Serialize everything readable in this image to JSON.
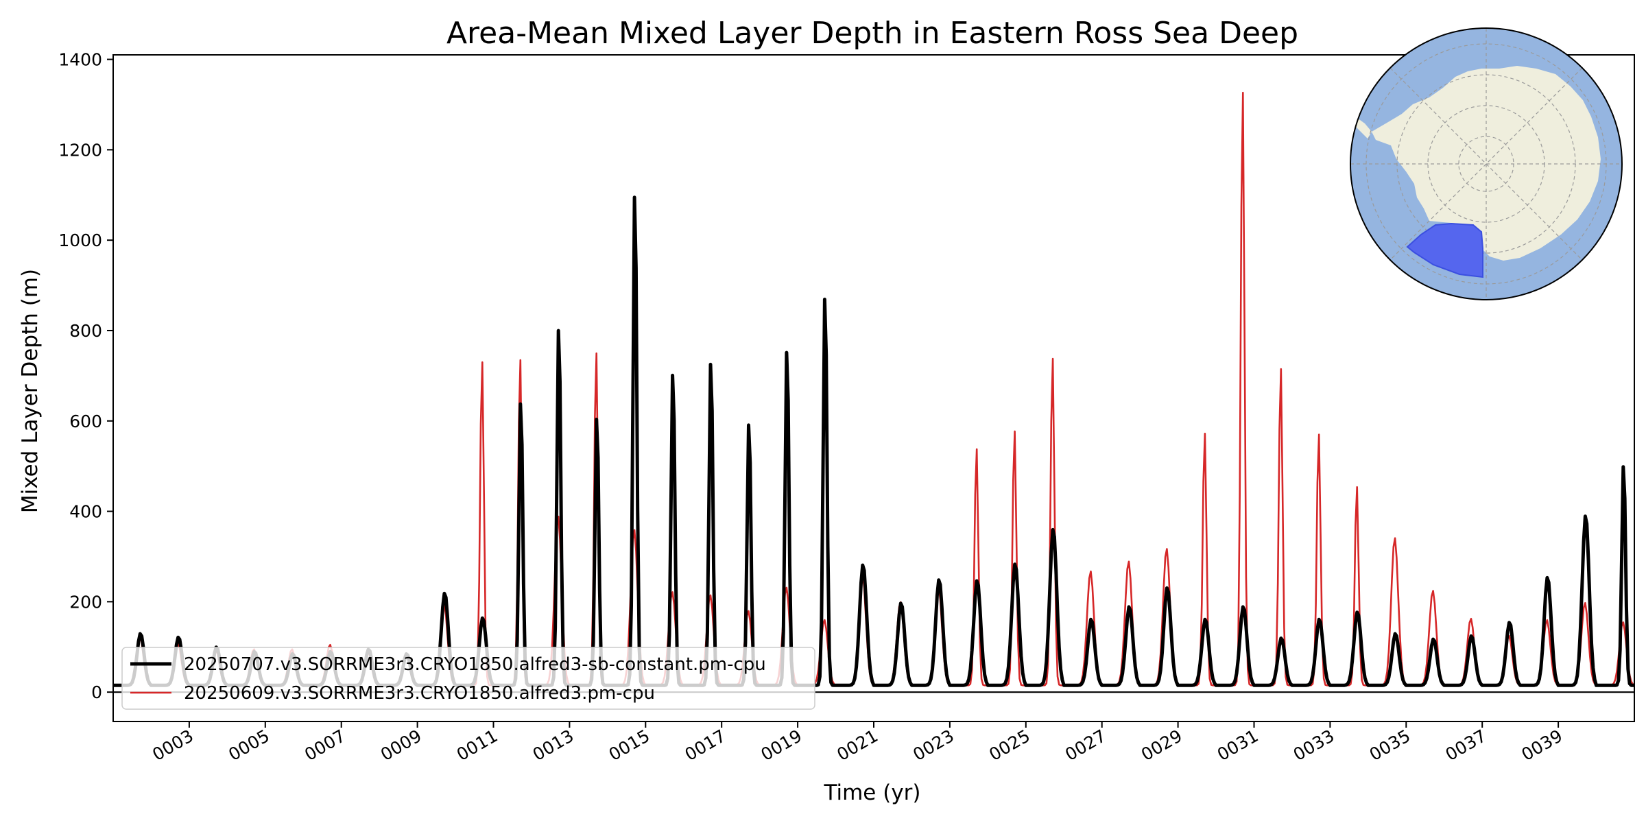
{
  "chart_data": {
    "type": "line",
    "title": "Area-Mean Mixed Layer Depth in Eastern Ross Sea Deep",
    "xlabel": "Time (yr)",
    "ylabel": "Mixed Layer Depth (m)",
    "xlim": [
      1,
      41
    ],
    "ylim": [
      -65,
      1410
    ],
    "x_ticks": [
      3,
      5,
      7,
      9,
      11,
      13,
      15,
      17,
      19,
      21,
      23,
      25,
      27,
      29,
      31,
      33,
      35,
      37,
      39
    ],
    "x_tick_labels": [
      "0003",
      "0005",
      "0007",
      "0009",
      "0011",
      "0013",
      "0015",
      "0017",
      "0019",
      "0021",
      "0023",
      "0025",
      "0027",
      "0029",
      "0031",
      "0033",
      "0035",
      "0037",
      "0039"
    ],
    "y_ticks": [
      0,
      200,
      400,
      600,
      800,
      1000,
      1200,
      1400
    ],
    "y_tick_labels": [
      "0",
      "200",
      "400",
      "600",
      "800",
      "1000",
      "1200",
      "1400"
    ],
    "grid": false,
    "zero_line": true,
    "legend_position": "lower-left",
    "inset_map": "south-polar stereographic map of Antarctica with Eastern Ross Sea Deep region highlighted",
    "series": [
      {
        "name": "20250707.v3.SORRME3r3.CRYO1850.alfred3-sb-constant.pm-cpu",
        "color": "#000000",
        "line_width": "thick",
        "annual_peaks": [
          {
            "year": 1,
            "peak": 130
          },
          {
            "year": 2,
            "peak": 122
          },
          {
            "year": 3,
            "peak": 100
          },
          {
            "year": 4,
            "peak": 90
          },
          {
            "year": 5,
            "peak": 85
          },
          {
            "year": 6,
            "peak": 90
          },
          {
            "year": 7,
            "peak": 95
          },
          {
            "year": 8,
            "peak": 85
          },
          {
            "year": 9,
            "peak": 220
          },
          {
            "year": 10,
            "peak": 165
          },
          {
            "year": 11,
            "peak": 655
          },
          {
            "year": 12,
            "peak": 822
          },
          {
            "year": 13,
            "peak": 620
          },
          {
            "year": 14,
            "peak": 1125
          },
          {
            "year": 15,
            "peak": 720
          },
          {
            "year": 16,
            "peak": 745
          },
          {
            "year": 17,
            "peak": 607
          },
          {
            "year": 18,
            "peak": 772
          },
          {
            "year": 19,
            "peak": 893
          },
          {
            "year": 20,
            "peak": 283
          },
          {
            "year": 21,
            "peak": 198
          },
          {
            "year": 22,
            "peak": 250
          },
          {
            "year": 23,
            "peak": 248
          },
          {
            "year": 24,
            "peak": 285
          },
          {
            "year": 25,
            "peak": 362
          },
          {
            "year": 26,
            "peak": 162
          },
          {
            "year": 27,
            "peak": 190
          },
          {
            "year": 28,
            "peak": 232
          },
          {
            "year": 29,
            "peak": 162
          },
          {
            "year": 30,
            "peak": 190
          },
          {
            "year": 31,
            "peak": 120
          },
          {
            "year": 32,
            "peak": 162
          },
          {
            "year": 33,
            "peak": 178
          },
          {
            "year": 34,
            "peak": 130
          },
          {
            "year": 35,
            "peak": 118
          },
          {
            "year": 36,
            "peak": 125
          },
          {
            "year": 37,
            "peak": 155
          },
          {
            "year": 38,
            "peak": 255
          },
          {
            "year": 39,
            "peak": 392
          },
          {
            "year": 40,
            "peak": 512
          }
        ]
      },
      {
        "name": "20250609.v3.SORRME3r3.CRYO1850.alfred3.pm-cpu",
        "color": "#d62728",
        "line_width": "thin",
        "annual_peaks": [
          {
            "year": 1,
            "peak": 125
          },
          {
            "year": 2,
            "peak": 110
          },
          {
            "year": 3,
            "peak": 95
          },
          {
            "year": 4,
            "peak": 95
          },
          {
            "year": 5,
            "peak": 95
          },
          {
            "year": 6,
            "peak": 105
          },
          {
            "year": 7,
            "peak": 90
          },
          {
            "year": 8,
            "peak": 85
          },
          {
            "year": 9,
            "peak": 195
          },
          {
            "year": 10,
            "peak": 740
          },
          {
            "year": 11,
            "peak": 745
          },
          {
            "year": 12,
            "peak": 390
          },
          {
            "year": 13,
            "peak": 760
          },
          {
            "year": 14,
            "peak": 360
          },
          {
            "year": 15,
            "peak": 222
          },
          {
            "year": 16,
            "peak": 215
          },
          {
            "year": 17,
            "peak": 180
          },
          {
            "year": 18,
            "peak": 232
          },
          {
            "year": 19,
            "peak": 160
          },
          {
            "year": 20,
            "peak": 265
          },
          {
            "year": 21,
            "peak": 200
          },
          {
            "year": 22,
            "peak": 235
          },
          {
            "year": 23,
            "peak": 545
          },
          {
            "year": 24,
            "peak": 585
          },
          {
            "year": 25,
            "peak": 748
          },
          {
            "year": 26,
            "peak": 268
          },
          {
            "year": 27,
            "peak": 290
          },
          {
            "year": 28,
            "peak": 318
          },
          {
            "year": 29,
            "peak": 580
          },
          {
            "year": 30,
            "peak": 1345
          },
          {
            "year": 31,
            "peak": 725
          },
          {
            "year": 32,
            "peak": 578
          },
          {
            "year": 33,
            "peak": 460
          },
          {
            "year": 34,
            "peak": 342
          },
          {
            "year": 35,
            "peak": 225
          },
          {
            "year": 36,
            "peak": 163
          },
          {
            "year": 37,
            "peak": 125
          },
          {
            "year": 38,
            "peak": 160
          },
          {
            "year": 39,
            "peak": 198
          },
          {
            "year": 40,
            "peak": 155
          }
        ]
      }
    ]
  }
}
